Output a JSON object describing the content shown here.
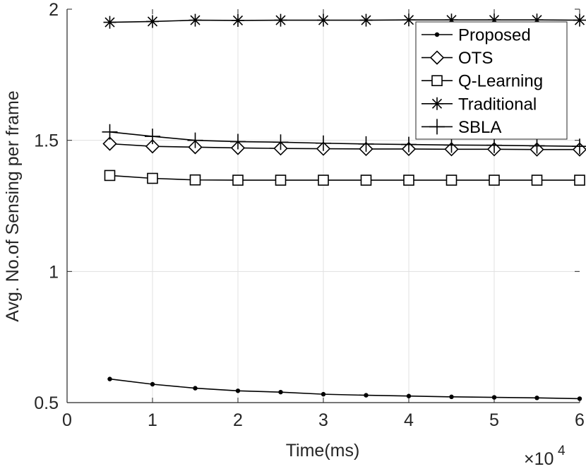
{
  "chart_data": {
    "type": "line",
    "title": "",
    "xlabel": "Time(ms)",
    "ylabel": "Avg. No.of Sensing per frame",
    "x_exponent_base": "×10",
    "x_exponent_power": "4",
    "xlim": [
      0,
      6
    ],
    "ylim": [
      0.5,
      2
    ],
    "xticks": [
      0,
      1,
      2,
      3,
      4,
      5,
      6
    ],
    "xtick_labels": [
      "0",
      "1",
      "2",
      "3",
      "4",
      "5",
      "6"
    ],
    "yticks": [
      0.5,
      1,
      1.5,
      2
    ],
    "ytick_labels": [
      "0.5",
      "1",
      "1.5",
      "2"
    ],
    "grid": true,
    "legend_position": "top-right",
    "x": [
      0.5,
      1,
      1.5,
      2,
      2.5,
      3,
      3.5,
      4,
      4.5,
      5,
      5.5,
      6
    ],
    "series": [
      {
        "name": "Proposed",
        "marker": "dot",
        "values": [
          0.59,
          0.57,
          0.555,
          0.545,
          0.54,
          0.532,
          0.528,
          0.525,
          0.522,
          0.52,
          0.518,
          0.515
        ]
      },
      {
        "name": "OTS",
        "marker": "diamond",
        "values": [
          1.487,
          1.477,
          1.474,
          1.471,
          1.469,
          1.468,
          1.467,
          1.467,
          1.466,
          1.466,
          1.465,
          1.465
        ]
      },
      {
        "name": "Q-Learning",
        "marker": "square",
        "values": [
          1.366,
          1.355,
          1.349,
          1.348,
          1.348,
          1.348,
          1.348,
          1.348,
          1.348,
          1.348,
          1.348,
          1.348
        ]
      },
      {
        "name": "Traditional",
        "marker": "asterisk",
        "values": [
          1.95,
          1.953,
          1.958,
          1.957,
          1.958,
          1.958,
          1.958,
          1.959,
          1.959,
          1.959,
          1.959,
          1.958
        ]
      },
      {
        "name": "SBLA",
        "marker": "plus",
        "values": [
          1.532,
          1.515,
          1.5,
          1.495,
          1.493,
          1.489,
          1.486,
          1.484,
          1.482,
          1.481,
          1.479,
          1.477
        ]
      }
    ]
  }
}
